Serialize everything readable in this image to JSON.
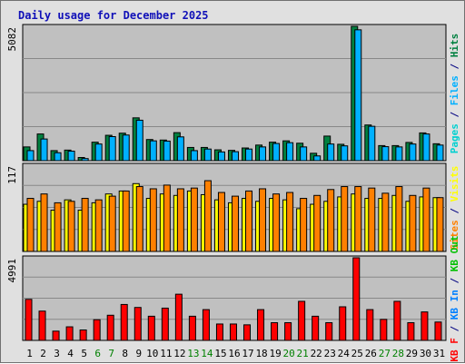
{
  "title": "Daily usage for December 2025",
  "colors": {
    "hits": "#008040",
    "files": "#00b0ff",
    "pages": "#00d0d0",
    "visits": "#ffff00",
    "sites": "#ff8000",
    "kb_out": "#00c000",
    "kb_in": "#0080ff",
    "kb_f": "#ff0000",
    "separator": "#000080",
    "weekday": "#000000",
    "weekend": "#008000"
  },
  "chart_data": [
    {
      "type": "bar",
      "panel": "hits-files",
      "ymax_label": "5082",
      "ylim": [
        0,
        5082
      ],
      "grid": true,
      "legend": [
        "Pages",
        "Files",
        "Hits"
      ],
      "categories": [
        "1",
        "2",
        "3",
        "4",
        "5",
        "6",
        "7",
        "8",
        "9",
        "10",
        "11",
        "12",
        "13",
        "14",
        "15",
        "16",
        "17",
        "18",
        "19",
        "20",
        "21",
        "22",
        "23",
        "24",
        "25",
        "26",
        "27",
        "28",
        "29",
        "30",
        "31"
      ],
      "weekend_days": [
        "6",
        "7",
        "13",
        "14",
        "20",
        "21",
        "27",
        "28"
      ],
      "series": [
        {
          "name": "Hits",
          "values": [
            520,
            1010,
            380,
            400,
            120,
            700,
            960,
            1040,
            1620,
            800,
            780,
            1060,
            500,
            500,
            410,
            390,
            480,
            590,
            700,
            750,
            660,
            280,
            930,
            620,
            5082,
            1350,
            570,
            570,
            690,
            1050,
            640
          ]
        },
        {
          "name": "Files",
          "values": [
            380,
            820,
            300,
            360,
            80,
            630,
            910,
            970,
            1530,
            750,
            740,
            900,
            380,
            440,
            330,
            340,
            440,
            520,
            650,
            680,
            520,
            180,
            630,
            560,
            4950,
            1300,
            530,
            520,
            630,
            1010,
            590
          ]
        }
      ]
    },
    {
      "type": "bar",
      "panel": "visits-sites",
      "ymax_label": "117",
      "ylim": [
        0,
        117
      ],
      "grid": true,
      "legend": [
        "Sites",
        "Visits"
      ],
      "categories": [
        "1",
        "2",
        "3",
        "4",
        "5",
        "6",
        "7",
        "8",
        "9",
        "10",
        "11",
        "12",
        "13",
        "14",
        "15",
        "16",
        "17",
        "18",
        "19",
        "20",
        "21",
        "22",
        "23",
        "24",
        "25",
        "26",
        "27",
        "28",
        "29",
        "30",
        "31"
      ],
      "weekend_days": [
        "6",
        "7",
        "13",
        "14",
        "20",
        "21",
        "27",
        "28"
      ],
      "series": [
        {
          "name": "Visits",
          "values": [
            64,
            68,
            56,
            70,
            56,
            66,
            78,
            82,
            92,
            72,
            78,
            76,
            82,
            77,
            70,
            66,
            72,
            68,
            72,
            70,
            58,
            64,
            68,
            74,
            78,
            72,
            72,
            76,
            68,
            74,
            73
          ]
        },
        {
          "name": "Sites",
          "values": [
            72,
            78,
            66,
            68,
            72,
            70,
            75,
            82,
            88,
            85,
            90,
            85,
            86,
            96,
            80,
            75,
            82,
            85,
            78,
            80,
            72,
            76,
            84,
            88,
            88,
            86,
            79,
            88,
            76,
            86,
            73
          ]
        }
      ]
    },
    {
      "type": "bar",
      "panel": "kbytes",
      "ymax_label": "4991",
      "ylim": [
        0,
        4991
      ],
      "grid": true,
      "legend": [
        "KB F",
        "KB In",
        "KB Out"
      ],
      "categories": [
        "1",
        "2",
        "3",
        "4",
        "5",
        "6",
        "7",
        "8",
        "9",
        "10",
        "11",
        "12",
        "13",
        "14",
        "15",
        "16",
        "17",
        "18",
        "19",
        "20",
        "21",
        "22",
        "23",
        "24",
        "25",
        "26",
        "27",
        "28",
        "29",
        "30",
        "31"
      ],
      "weekend_days": [
        "6",
        "7",
        "13",
        "14",
        "20",
        "21",
        "27",
        "28"
      ],
      "series": [
        {
          "name": "KB F",
          "values": [
            2480,
            1770,
            560,
            820,
            630,
            1250,
            1520,
            2170,
            1990,
            1460,
            1950,
            2790,
            1460,
            1860,
            990,
            990,
            940,
            1860,
            1070,
            1070,
            2360,
            1460,
            1070,
            2030,
            4991,
            1860,
            1270,
            2360,
            1070,
            1720,
            1110
          ]
        }
      ]
    }
  ]
}
